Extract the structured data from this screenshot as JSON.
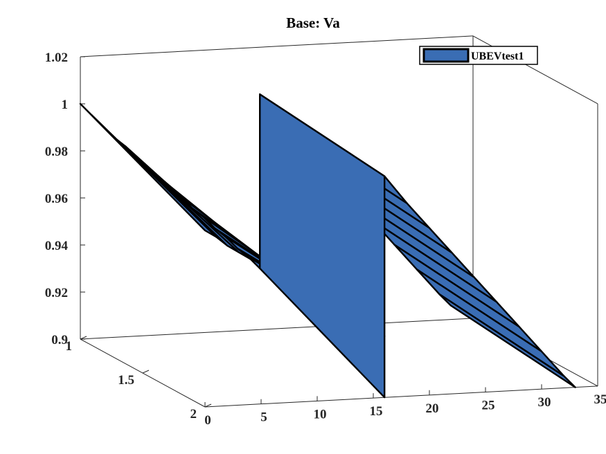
{
  "chart_data": {
    "type": "area",
    "title": "Base: Va",
    "xlabel": "",
    "ylabel": "",
    "zlabel": "",
    "grid": false,
    "legend": {
      "position": "top-right",
      "entries": [
        "UBEVtest1"
      ]
    },
    "colors": {
      "surface": "#3a6db4",
      "edge": "#000000",
      "axis": "#262626"
    },
    "x_ticks": [
      0,
      5,
      10,
      15,
      20,
      25,
      30,
      35
    ],
    "y_ticks": [
      "1",
      "1.5",
      "2"
    ],
    "z_ticks": [
      "0.9",
      "0.92",
      "0.94",
      "0.96",
      "0.98",
      "1",
      "1.02"
    ],
    "xlim": [
      0,
      35
    ],
    "ylim": [
      1,
      2
    ],
    "zlim": [
      0.9,
      1.02
    ],
    "series": [
      {
        "name": "UBEVtest1",
        "sheet_front": {
          "x": [
            0,
            1,
            2,
            3,
            4,
            5,
            6,
            7,
            8,
            9,
            10,
            11,
            12,
            13,
            14,
            15,
            16
          ],
          "z": [
            1.0,
            0.995,
            0.99,
            0.985,
            0.981,
            0.976,
            0.971,
            0.967,
            0.962,
            0.958,
            0.953,
            0.949,
            0.944,
            0.94,
            0.935,
            0.931,
            0.926
          ]
        },
        "sheet_back": {
          "x": [
            0,
            1,
            2,
            3,
            4,
            5,
            6,
            7,
            8,
            9,
            10,
            11,
            12,
            13,
            14,
            15,
            16
          ],
          "z": [
            0.975,
            0.972,
            0.968,
            0.965,
            0.962,
            0.959,
            0.956,
            0.953,
            0.95,
            0.947,
            0.944,
            0.941,
            0.938,
            0.935,
            0.932,
            0.929,
            0.926
          ]
        },
        "sheet2_front": {
          "x": [
            16,
            18,
            20,
            22,
            24,
            26,
            28,
            30,
            32,
            33
          ],
          "z": [
            1.0,
            0.988,
            0.977,
            0.966,
            0.955,
            0.944,
            0.933,
            0.922,
            0.911,
            0.906
          ]
        }
      }
    ]
  }
}
